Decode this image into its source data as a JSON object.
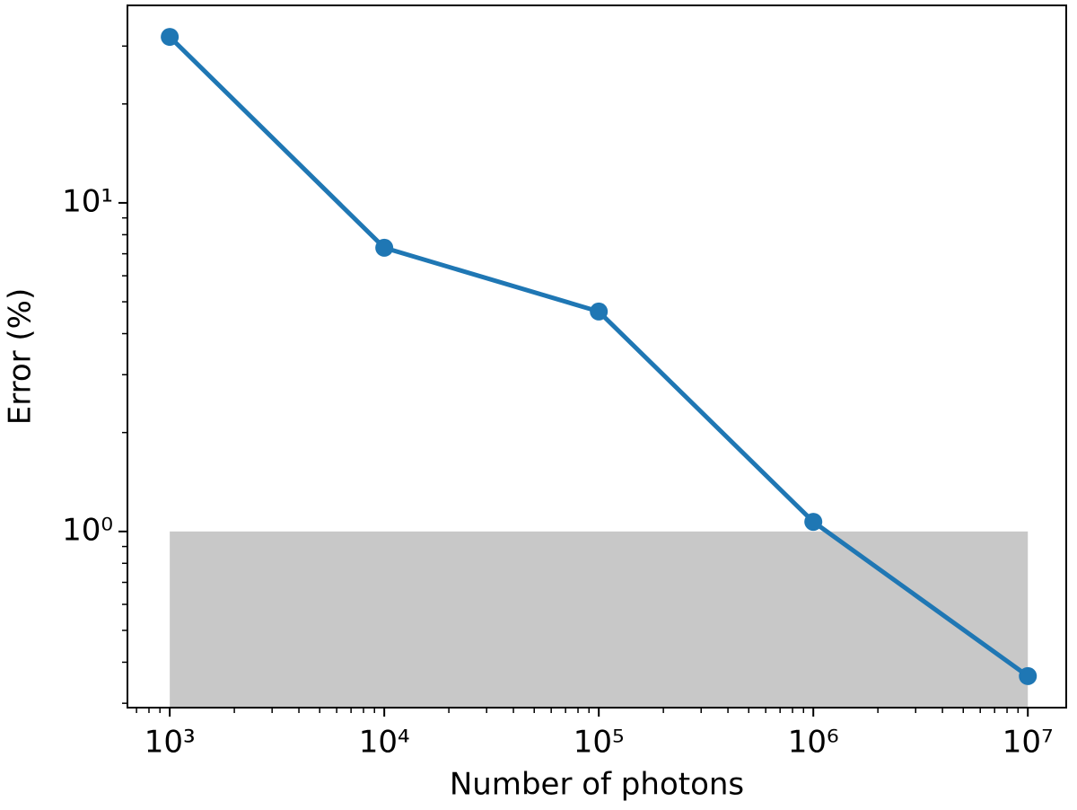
{
  "chart_data": {
    "type": "line",
    "xlabel": "Number of photons",
    "ylabel": "Error (%)",
    "x": [
      1000,
      10000,
      100000,
      1000000,
      10000000
    ],
    "series": [
      {
        "color": "#1f77b4",
        "values": [
          32,
          7.3,
          4.67,
          1.07,
          0.363
        ]
      }
    ],
    "xlog": true,
    "ylog": true,
    "xlim": [
      635,
      15100000
    ],
    "ylim": [
      0.291,
      39.9
    ],
    "xticks": [
      {
        "value": 1000,
        "label": "10³"
      },
      {
        "value": 10000,
        "label": "10⁴"
      },
      {
        "value": 100000,
        "label": "10⁵"
      },
      {
        "value": 1000000,
        "label": "10⁶"
      },
      {
        "value": 10000000,
        "label": "10⁷"
      }
    ],
    "yticks": [
      {
        "value": 1,
        "label": "10⁰"
      },
      {
        "value": 10,
        "label": "10¹"
      }
    ],
    "minor_ticks": true,
    "shaded_region": {
      "x": [
        1000,
        10000000
      ],
      "ymax": 1,
      "color": "#c8c8c8"
    }
  }
}
